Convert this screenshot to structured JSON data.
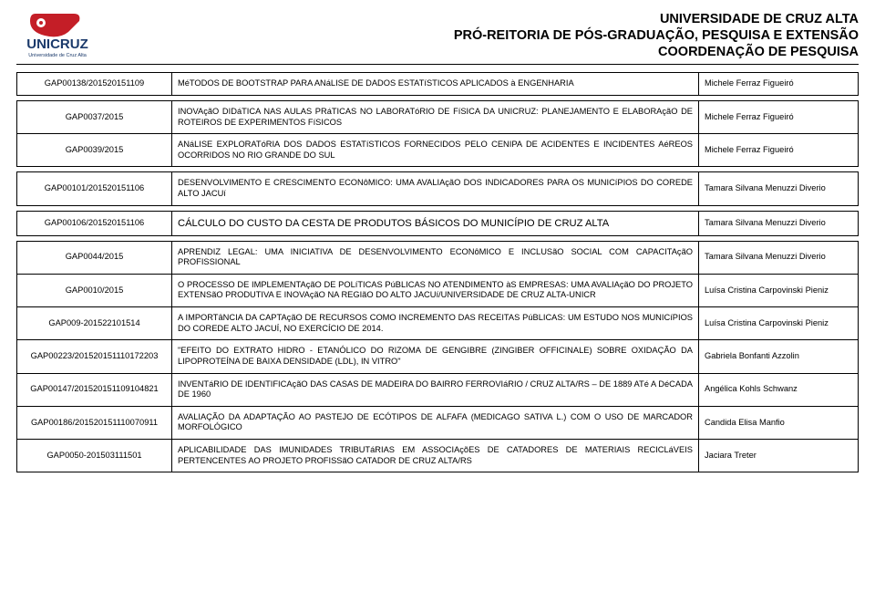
{
  "university": "UNIVERSIDADE DE CRUZ ALTA",
  "department": "PRÓ-REITORIA DE PÓS-GRADUAÇÃO, PESQUISA E EXTENSÃO",
  "coordination": "COORDENAÇÃO DE PESQUISA",
  "logo": {
    "top_color": "#c41e27",
    "text": "UNICRUZ",
    "text_color": "#1b3a6b",
    "sub": "Universidade de Cruz Alta"
  },
  "colors": {
    "border": "#000000",
    "bg": "#ffffff"
  },
  "rows": [
    {
      "code": "GAP00138/201520151109",
      "title": "MéTODOS DE BOOTSTRAP PARA ANáLISE DE DADOS ESTATíSTICOS APLICADOS à ENGENHARIA",
      "author": "Michele Ferraz Figueiró",
      "big": false,
      "spacer_after": true
    },
    {
      "code": "GAP0037/2015",
      "title": "INOVAçãO DIDáTICA NAS AULAS PRáTICAS NO LABORATóRIO DE FíSICA DA UNICRUZ: PLANEJAMENTO E ELABORAçãO DE ROTEIROS DE EXPERIMENTOS FíSICOS",
      "author": "Michele Ferraz Figueiró",
      "big": false
    },
    {
      "code": "GAP0039/2015",
      "title": "ANáLISE EXPLORATóRIA DOS DADOS ESTATíSTICOS FORNECIDOS PELO CENIPA DE ACIDENTES E INCIDENTES AéREOS OCORRIDOS NO RIO GRANDE DO SUL",
      "author": "Michele Ferraz Figueiró",
      "big": false,
      "spacer_after": true
    },
    {
      "code": "GAP00101/201520151106",
      "title": "DESENVOLVIMENTO E CRESCIMENTO ECONôMICO: UMA AVALIAçãO DOS INDICADORES PARA OS MUNICíPIOS DO COREDE ALTO JACUí",
      "author": "Tamara Silvana Menuzzi Diverio",
      "big": false,
      "spacer_after": true
    },
    {
      "code": "GAP00106/201520151106",
      "title": "CÁLCULO DO CUSTO DA CESTA DE PRODUTOS BÁSICOS DO MUNICÍPIO DE CRUZ ALTA",
      "author": "Tamara Silvana Menuzzi Diverio",
      "big": true,
      "spacer_after": true
    },
    {
      "code": "GAP0044/2015",
      "title": "APRENDIZ LEGAL: UMA INICIATIVA DE DESENVOLVIMENTO ECONôMICO E INCLUSãO SOCIAL COM CAPACITAçãO PROFISSIONAL",
      "author": "Tamara Silvana Menuzzi Diverio",
      "big": false
    },
    {
      "code": "GAP0010/2015",
      "title": "O PROCESSO DE IMPLEMENTAçãO DE POLíTICAS PúBLICAS NO ATENDIMENTO àS EMPRESAS: UMA AVALIAçãO DO PROJETO EXTENSãO PRODUTIVA E INOVAçãO NA REGIãO DO ALTO JACUí/UNIVERSIDADE DE CRUZ ALTA-UNICR",
      "author": "Luísa Cristina Carpovinski Pieniz",
      "big": false
    },
    {
      "code": "GAP009-201522101514",
      "title": "A IMPORTâNCIA DA CAPTAçãO DE RECURSOS COMO INCREMENTO DAS RECEITAS PúBLICAS: UM ESTUDO NOS MUNICíPIOS DO COREDE ALTO JACUÍ, NO EXERCÍCIO DE 2014.",
      "author": "Luísa Cristina Carpovinski Pieniz",
      "big": false
    },
    {
      "code": "GAP00223/201520151110172203",
      "title": "\"EFEITO DO EXTRATO HIDRO - ETANÓLICO DO RIZOMA DE GENGIBRE (ZINGIBER OFFICINALE) SOBRE OXIDAÇÃO DA LIPOPROTEÍNA DE BAIXA DENSIDADE (LDL), IN VITRO\"",
      "author": "Gabriela Bonfanti Azzolin",
      "big": false
    },
    {
      "code": "GAP00147/201520151109104821",
      "title": "INVENTáRIO DE IDENTIFICAçãO DAS CASAS DE MADEIRA DO BAIRRO FERROVIáRIO / CRUZ ALTA/RS – DE 1889 ATé A DéCADA DE 1960",
      "author": "Angélica Kohls Schwanz",
      "big": false
    },
    {
      "code": "GAP00186/201520151110070911",
      "title": "AVALIAÇÃO DA ADAPTAÇÃO AO PASTEJO DE ECÓTIPOS DE ALFAFA (MEDICAGO SATIVA L.) COM O USO DE MARCADOR MORFOLÓGICO",
      "author": "Candida Elisa Manfio",
      "big": false
    },
    {
      "code": "GAP0050-201503111501",
      "title": "APLICABILIDADE DAS IMUNIDADES TRIBUTáRIAS EM ASSOCIAçõES DE CATADORES DE MATERIAIS RECICLáVEIS PERTENCENTES AO PROJETO PROFISSãO CATADOR DE CRUZ ALTA/RS",
      "author": "Jaciara Treter",
      "big": false
    }
  ]
}
